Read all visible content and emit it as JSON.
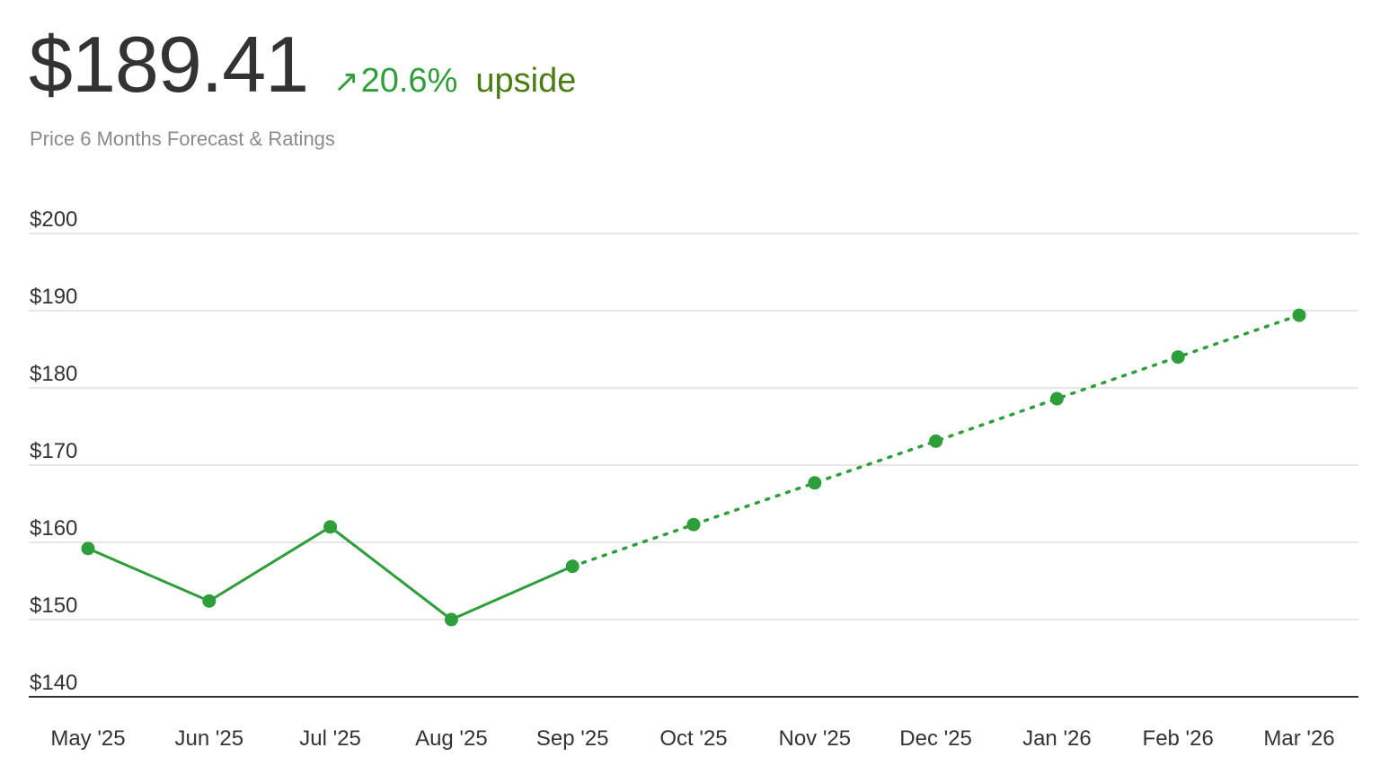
{
  "header": {
    "price": "$189.41",
    "arrow_icon": "↗",
    "change_pct": "20.6%",
    "change_label": "upside",
    "subtitle": "Price 6 Months Forecast & Ratings"
  },
  "colors": {
    "accent": "#2e9e3a",
    "upside_text": "#4a7c12",
    "grid": "#dddddd",
    "axis": "#333333",
    "tick_text": "#333333"
  },
  "chart_data": {
    "type": "line",
    "title": "",
    "xlabel": "",
    "ylabel": "",
    "categories": [
      "May '25",
      "Jun '25",
      "Jul '25",
      "Aug '25",
      "Sep '25",
      "Oct '25",
      "Nov '25",
      "Dec '25",
      "Jan '26",
      "Feb '26",
      "Mar '26"
    ],
    "ylim": [
      140,
      200
    ],
    "yticks": [
      140,
      150,
      160,
      170,
      180,
      190,
      200
    ],
    "ytick_labels": [
      "$140",
      "$150",
      "$160",
      "$170",
      "$180",
      "$190",
      "$200"
    ],
    "grid": true,
    "legend": "none",
    "series": [
      {
        "style": "solid",
        "x": [
          "May '25",
          "Jun '25",
          "Jul '25",
          "Aug '25",
          "Sep '25"
        ],
        "values": [
          159.2,
          152.4,
          162.0,
          150.0,
          156.9
        ]
      },
      {
        "style": "dotted",
        "x": [
          "Sep '25",
          "Oct '25",
          "Nov '25",
          "Dec '25",
          "Jan '26",
          "Feb '26",
          "Mar '26"
        ],
        "values": [
          156.9,
          162.3,
          167.7,
          173.1,
          178.6,
          184.0,
          189.41
        ]
      }
    ]
  }
}
